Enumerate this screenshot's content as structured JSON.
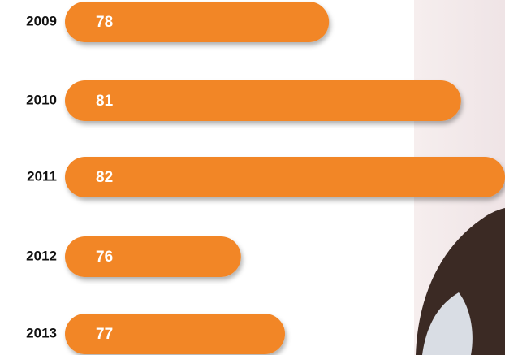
{
  "chart_data": {
    "type": "bar",
    "orientation": "horizontal",
    "categories": [
      "2009",
      "2010",
      "2011",
      "2012",
      "2013"
    ],
    "values": [
      78,
      81,
      82,
      76,
      77
    ],
    "color": "#f28627",
    "xlim": [
      72,
      82
    ]
  }
}
